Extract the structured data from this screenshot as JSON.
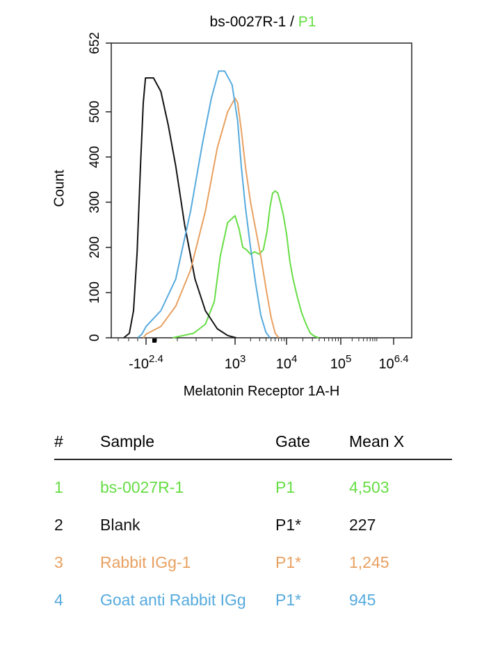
{
  "header": {
    "title_main": "bs-0027R-1 / ",
    "title_gate": "P1"
  },
  "chart_data": {
    "type": "line",
    "title": "bs-0027R-1 / P1",
    "xlabel": "Melatonin Receptor 1A-H",
    "ylabel": "Count",
    "ylim": [
      0,
      652
    ],
    "yticks": [
      0,
      100,
      200,
      300,
      400,
      500,
      652
    ],
    "xticks": [
      {
        "base": "-10",
        "exp": "2.4"
      },
      {
        "base": "10",
        "exp": "3"
      },
      {
        "base": "10",
        "exp": "4"
      },
      {
        "base": "10",
        "exp": "5"
      },
      {
        "base": "10",
        "exp": "6.4"
      }
    ],
    "xscale_note": "logicle, x in log10 units",
    "series": [
      {
        "name": "bs-0027R-1",
        "color": "#66dd44",
        "x": [
          2.58,
          2.72,
          2.8,
          2.86,
          2.9,
          2.95,
          3.0,
          3.08,
          3.15,
          3.22,
          3.3,
          3.38,
          3.47,
          3.55,
          3.62,
          3.68,
          3.73,
          3.78,
          3.83,
          3.88,
          3.94,
          4.0,
          4.06,
          4.12,
          4.2,
          4.28,
          4.36,
          4.44,
          4.52,
          4.6
        ],
        "y": [
          0,
          10,
          30,
          80,
          180,
          255,
          270,
          240,
          200,
          195,
          185,
          190,
          185,
          195,
          235,
          290,
          320,
          325,
          320,
          300,
          270,
          230,
          170,
          130,
          90,
          55,
          30,
          10,
          3,
          0
        ]
      },
      {
        "name": "Blank",
        "color": "#111111",
        "x": [
          1.6,
          1.8,
          1.95,
          2.08,
          2.2,
          2.3,
          2.38,
          2.45,
          2.5,
          2.55,
          2.6,
          2.66,
          2.73,
          2.8,
          2.88,
          2.95,
          3.02
        ],
        "y": [
          0,
          10,
          60,
          190,
          380,
          520,
          575,
          575,
          545,
          470,
          380,
          250,
          130,
          60,
          20,
          5,
          0
        ]
      },
      {
        "name": "Rabbit IGg-1",
        "color": "#e8a060",
        "x": [
          2.3,
          2.4,
          2.5,
          2.6,
          2.7,
          2.8,
          2.88,
          2.95,
          3.0,
          3.05,
          3.12,
          3.2,
          3.3,
          3.4,
          3.5,
          3.6,
          3.7,
          3.78,
          3.85
        ],
        "y": [
          0,
          8,
          25,
          70,
          150,
          280,
          420,
          500,
          530,
          520,
          460,
          380,
          300,
          240,
          180,
          110,
          45,
          10,
          0
        ]
      },
      {
        "name": "Goat anti Rabbit IGg",
        "color": "#55aadd",
        "x": [
          2.1,
          2.25,
          2.4,
          2.5,
          2.6,
          2.7,
          2.78,
          2.84,
          2.89,
          2.93,
          2.98,
          3.05,
          3.12,
          3.2,
          3.3,
          3.4,
          3.5,
          3.6,
          3.68
        ],
        "y": [
          0,
          8,
          25,
          60,
          130,
          280,
          430,
          530,
          590,
          590,
          560,
          480,
          380,
          290,
          200,
          120,
          50,
          12,
          0
        ]
      }
    ]
  },
  "legend_table": {
    "headers": {
      "num": "#",
      "sample": "Sample",
      "gate": "Gate",
      "mean": "Mean X"
    },
    "rows": [
      {
        "num": "1",
        "sample": "bs-0027R-1",
        "gate": "P1",
        "mean": "4,503",
        "color": "#66dd44"
      },
      {
        "num": "2",
        "sample": "Blank",
        "gate": "P1*",
        "mean": "227",
        "color": "#111111"
      },
      {
        "num": "3",
        "sample": "Rabbit IGg-1",
        "gate": "P1*",
        "mean": "1,245",
        "color": "#e8a060"
      },
      {
        "num": "4",
        "sample": "Goat anti Rabbit IGg",
        "gate": "P1*",
        "mean": "945",
        "color": "#55aadd"
      }
    ]
  }
}
